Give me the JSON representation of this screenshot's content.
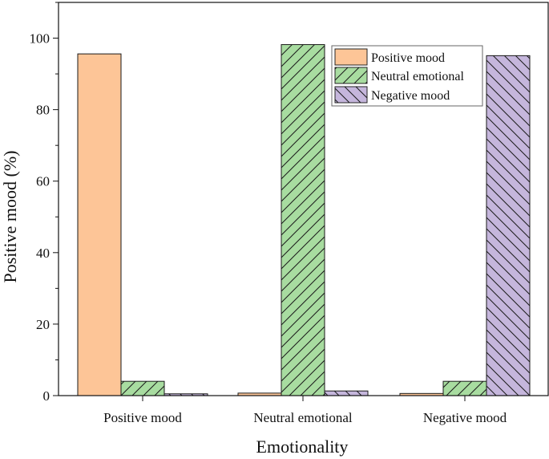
{
  "chart_data": {
    "type": "bar",
    "xlabel": "Emotionality",
    "ylabel": "Positive mood (%)",
    "categories": [
      "Positive mood",
      "Neutral emotional",
      "Negative mood"
    ],
    "series": [
      {
        "name": "Positive mood",
        "values": [
          95.6,
          0.7,
          0.6
        ],
        "color": "#fdc597",
        "pattern": "solid"
      },
      {
        "name": "Neutral emotional",
        "values": [
          4.0,
          98.2,
          4.0
        ],
        "color": "#a8dca0",
        "pattern": "forward-hatch"
      },
      {
        "name": "Negative mood",
        "values": [
          0.5,
          1.3,
          95.1
        ],
        "color": "#c5b6dc",
        "pattern": "back-hatch"
      }
    ],
    "ylim": [
      0,
      110
    ],
    "yticks": [
      0,
      20,
      40,
      60,
      80,
      100
    ],
    "legend": "top-right",
    "grid": false
  }
}
